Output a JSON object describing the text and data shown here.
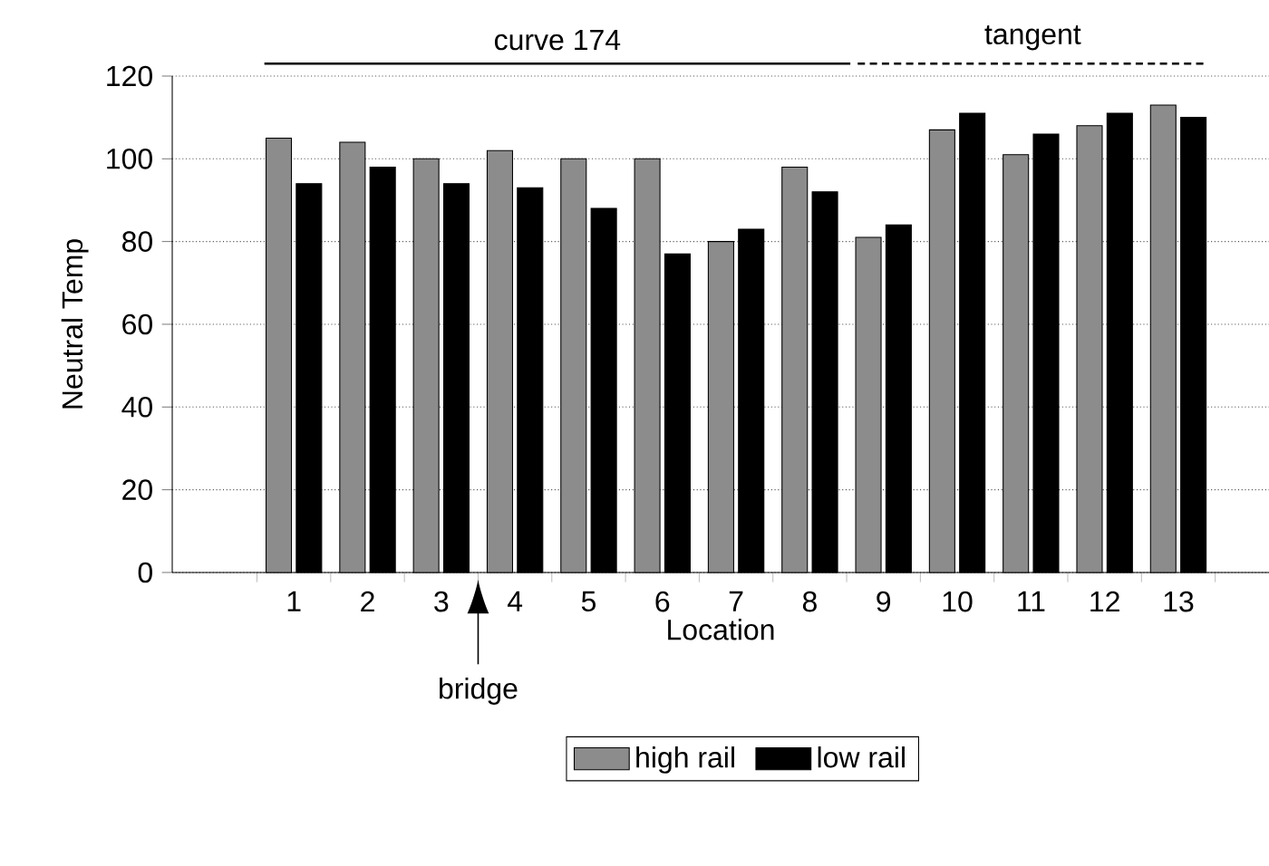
{
  "chart_data": {
    "type": "bar",
    "xlabel": "Location",
    "ylabel": "Neutral Temp",
    "categories": [
      "1",
      "2",
      "3",
      "4",
      "5",
      "6",
      "7",
      "8",
      "9",
      "10",
      "11",
      "12",
      "13"
    ],
    "series": [
      {
        "name": "high rail",
        "color": "#8c8c8c",
        "values": [
          105,
          104,
          100,
          102,
          100,
          100,
          80,
          98,
          81,
          107,
          101,
          108,
          113
        ]
      },
      {
        "name": "low rail",
        "color": "#000000",
        "values": [
          94,
          98,
          94,
          93,
          88,
          77,
          83,
          92,
          84,
          111,
          106,
          111,
          110
        ]
      }
    ],
    "ylim": [
      0,
      120
    ],
    "yticks": [
      0,
      20,
      40,
      60,
      80,
      100,
      120
    ],
    "grid": "y",
    "legend": "bottom",
    "annotations": [
      "curve 174",
      "tangent",
      "bridge"
    ]
  }
}
